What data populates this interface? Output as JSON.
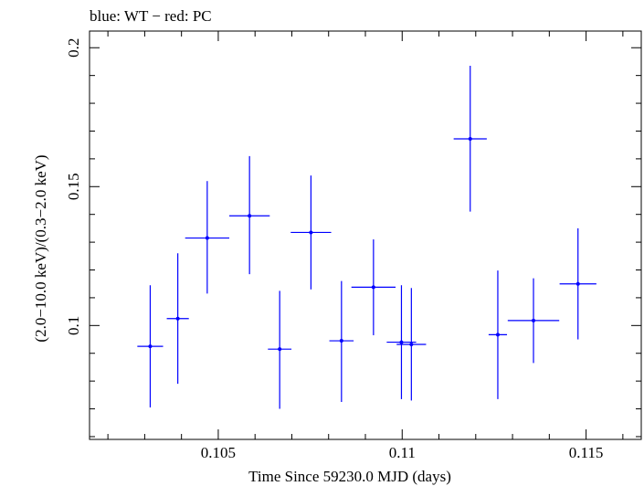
{
  "chart_data": {
    "type": "scatter",
    "title": "blue: WT − red: PC",
    "xlabel": "Time Since 59230.0 MJD (days)",
    "ylabel": "(2.0−10.0 keV)/(0.3−2.0 keV)",
    "xlim": [
      0.1015,
      0.1165
    ],
    "ylim": [
      0.059,
      0.206
    ],
    "x_ticks": [
      0.105,
      0.11,
      0.115
    ],
    "x_tick_labels": [
      "0.105",
      "0.11",
      "0.115"
    ],
    "y_ticks": [
      0.1,
      0.15,
      0.2
    ],
    "y_tick_labels": [
      "0.1",
      "0.15",
      "0.2"
    ],
    "grid": false,
    "series": [
      {
        "color": "#0000ff",
        "points": [
          {
            "x": 0.10315,
            "y": 0.0925,
            "xerr": 0.00035,
            "ylo": 0.0705,
            "yhi": 0.1145
          },
          {
            "x": 0.1039,
            "y": 0.1025,
            "xerr": 0.0003,
            "ylo": 0.079,
            "yhi": 0.126
          },
          {
            "x": 0.1047,
            "y": 0.1315,
            "xerr": 0.0006,
            "ylo": 0.1115,
            "yhi": 0.152
          },
          {
            "x": 0.10585,
            "y": 0.1395,
            "xerr": 0.00055,
            "ylo": 0.1185,
            "yhi": 0.161
          },
          {
            "x": 0.10667,
            "y": 0.0915,
            "xerr": 0.00032,
            "ylo": 0.07,
            "yhi": 0.1125
          },
          {
            "x": 0.10752,
            "y": 0.1335,
            "xerr": 0.00055,
            "ylo": 0.113,
            "yhi": 0.154
          },
          {
            "x": 0.10835,
            "y": 0.0945,
            "xerr": 0.00033,
            "ylo": 0.0725,
            "yhi": 0.116
          },
          {
            "x": 0.10922,
            "y": 0.1138,
            "xerr": 0.0006,
            "ylo": 0.0965,
            "yhi": 0.131
          },
          {
            "x": 0.11025,
            "y": 0.0932,
            "xerr": 0.0004,
            "ylo": 0.073,
            "yhi": 0.1135
          },
          {
            "x": 0.10998,
            "y": 0.094,
            "xerr": 0.0004,
            "ylo": 0.0735,
            "yhi": 0.1145
          },
          {
            "x": 0.11185,
            "y": 0.1672,
            "xerr": 0.00045,
            "ylo": 0.141,
            "yhi": 0.1935
          },
          {
            "x": 0.1126,
            "y": 0.0967,
            "xerr": 0.00025,
            "ylo": 0.0735,
            "yhi": 0.1198
          },
          {
            "x": 0.11357,
            "y": 0.1018,
            "xerr": 0.0007,
            "ylo": 0.0865,
            "yhi": 0.117
          },
          {
            "x": 0.11478,
            "y": 0.115,
            "xerr": 0.0005,
            "ylo": 0.095,
            "yhi": 0.135
          }
        ]
      }
    ]
  }
}
